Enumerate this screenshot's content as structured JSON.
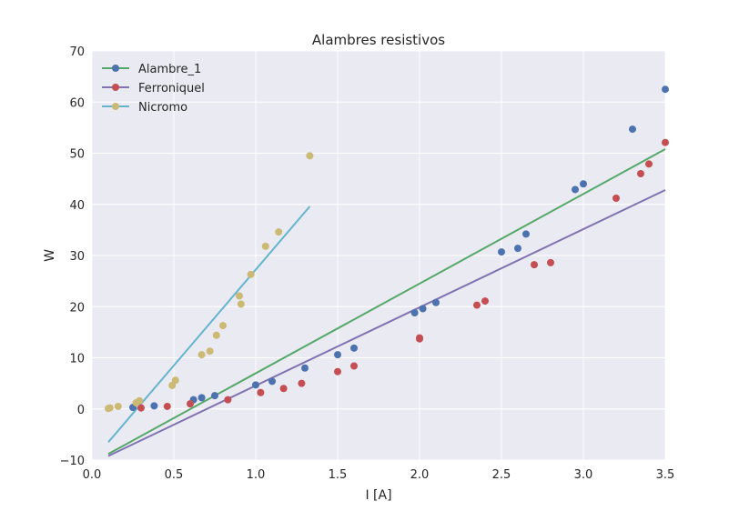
{
  "chart_data": {
    "type": "scatter",
    "title": "Alambres resistivos",
    "xlabel": "I [A]",
    "ylabel": "W",
    "xlim": [
      0.0,
      3.5
    ],
    "ylim": [
      -10,
      70
    ],
    "xticks": [
      0.0,
      0.5,
      1.0,
      1.5,
      2.0,
      2.5,
      3.0,
      3.5
    ],
    "xtick_labels": [
      "0.0",
      "0.5",
      "1.0",
      "1.5",
      "2.0",
      "2.5",
      "3.0",
      "3.5"
    ],
    "yticks": [
      -10,
      0,
      10,
      20,
      30,
      40,
      50,
      60,
      70
    ],
    "ytick_labels": [
      "−10",
      "0",
      "10",
      "20",
      "30",
      "40",
      "50",
      "60",
      "70"
    ],
    "grid": true,
    "legend_position": "top-left",
    "legend": [
      {
        "label": "Alambre_1",
        "line_color": "#55a868",
        "marker_color": "#4c72b0"
      },
      {
        "label": "Ferroniquel",
        "line_color": "#8172b2",
        "marker_color": "#c44e52"
      },
      {
        "label": "Nicromo",
        "line_color": "#64b5cd",
        "marker_color": "#ccb974"
      }
    ],
    "fit_lines": [
      {
        "name": "Alambre_1",
        "color": "#55a868",
        "x": [
          0.1,
          3.5
        ],
        "y": [
          -8.8,
          50.8
        ]
      },
      {
        "name": "Ferroniquel",
        "color": "#8172b2",
        "x": [
          0.1,
          3.5
        ],
        "y": [
          -9.2,
          42.8
        ]
      },
      {
        "name": "Nicromo",
        "color": "#64b5cd",
        "x": [
          0.1,
          1.33
        ],
        "y": [
          -6.5,
          39.6
        ]
      }
    ],
    "series": [
      {
        "name": "Alambre_1",
        "color": "#4c72b0",
        "x": [
          0.25,
          0.38,
          0.62,
          0.67,
          0.75,
          1.0,
          1.1,
          1.3,
          1.5,
          1.6,
          1.97,
          2.02,
          2.1,
          2.5,
          2.6,
          2.65,
          2.95,
          3.0,
          3.3,
          3.5
        ],
        "y": [
          0.3,
          0.6,
          1.8,
          2.2,
          2.6,
          4.7,
          5.4,
          8.0,
          10.6,
          11.9,
          18.8,
          19.6,
          20.8,
          30.7,
          31.4,
          34.2,
          42.9,
          44.0,
          54.7,
          62.5
        ]
      },
      {
        "name": "Ferroniquel",
        "color": "#c44e52",
        "x": [
          0.3,
          0.46,
          0.6,
          0.83,
          1.03,
          1.17,
          1.28,
          1.5,
          1.6,
          2.0,
          2.0,
          2.35,
          2.4,
          2.7,
          2.8,
          3.2,
          3.35,
          3.4,
          3.5
        ],
        "y": [
          0.2,
          0.5,
          1.0,
          1.8,
          3.2,
          4.0,
          5.0,
          7.3,
          8.4,
          13.9,
          13.7,
          20.3,
          21.1,
          28.2,
          28.6,
          41.2,
          46.0,
          47.9,
          52.1
        ]
      },
      {
        "name": "Nicromo",
        "color": "#ccb974",
        "x": [
          0.1,
          0.11,
          0.16,
          0.27,
          0.29,
          0.49,
          0.51,
          0.67,
          0.72,
          0.76,
          0.8,
          0.9,
          0.91,
          0.97,
          1.06,
          1.14,
          1.33
        ],
        "y": [
          0.1,
          0.2,
          0.5,
          1.2,
          1.6,
          4.6,
          5.6,
          10.6,
          11.3,
          14.4,
          16.3,
          22.1,
          20.5,
          26.3,
          31.8,
          34.6,
          49.5
        ]
      }
    ]
  }
}
